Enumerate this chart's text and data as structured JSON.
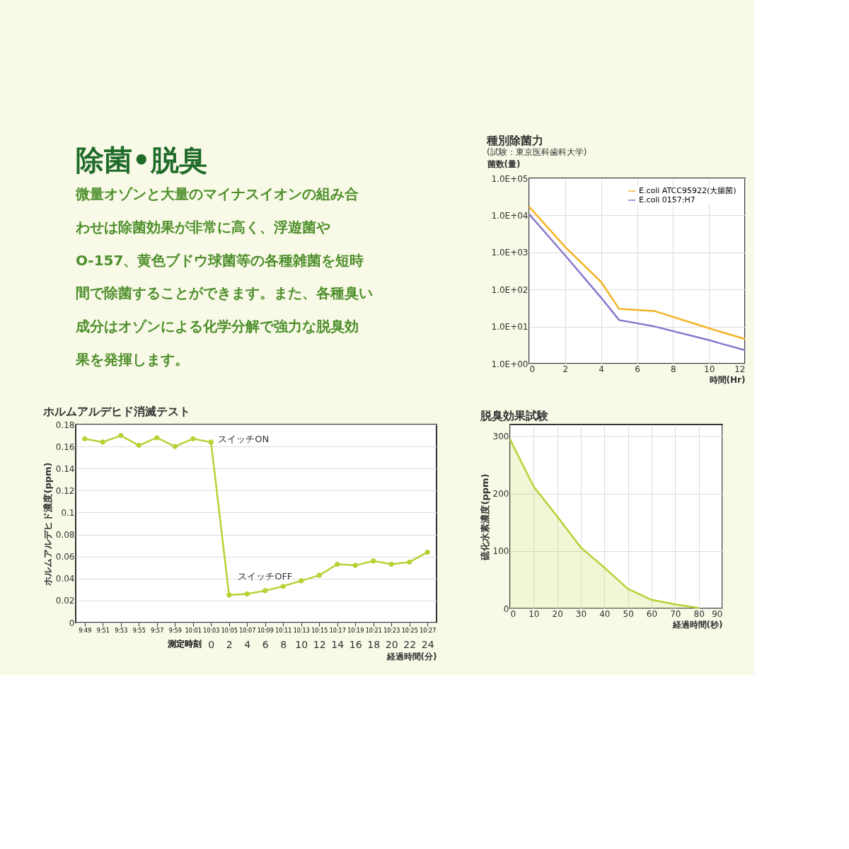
{
  "chart_data": [
    {
      "type": "other",
      "title": "除菌•脱臭",
      "annotations": [
        "微量オゾンと大量のマイナスイオンの組み合",
        "わせは除菌効果が非常に高く、浮遊菌や",
        "O-157、黄色ブドウ球菌等の各種雑菌を短時",
        "間で除菌することができます。また、各種臭い",
        "成分はオゾンによる化学分解で強力な脱臭効",
        "果を発揮します。"
      ]
    },
    {
      "type": "line",
      "title": "種別除菌力",
      "subtitle": "(試験：東京医科歯科大学)",
      "xlabel": "時間(Hr)",
      "ylabel": "菌数(量)",
      "x": [
        0,
        2,
        4,
        5,
        7,
        10,
        12
      ],
      "series": [
        {
          "name": "E.coli ATCC95922(大腸菌)",
          "color": "#f5b324",
          "values": [
            17000,
            1400,
            160,
            30,
            26,
            9,
            4.6
          ]
        },
        {
          "name": "E.coli 0157:H7",
          "color": "#8877cc",
          "values": [
            10700,
            830,
            60,
            15,
            10,
            4.3,
            2.3
          ]
        }
      ],
      "xlim": [
        0,
        12
      ],
      "xticks": [
        0,
        2,
        4,
        6,
        8,
        10,
        12
      ],
      "ylim": [
        1,
        100000
      ],
      "yticks": [
        {
          "value": 1,
          "label": "1.0E+00"
        },
        {
          "value": 10,
          "label": "1.0E+01"
        },
        {
          "value": 100,
          "label": "1.0E+02"
        },
        {
          "value": 1000,
          "label": "1.0E+03"
        },
        {
          "value": 10000,
          "label": "1.0E+04"
        },
        {
          "value": 100000,
          "label": "1.0E+05"
        }
      ],
      "log": "y",
      "grid": true,
      "legend": "top right",
      "marker": "none",
      "line_style": "solid"
    },
    {
      "type": "line",
      "title": "ホルムアルデヒド消滅テスト",
      "xlabel": "測定時刻",
      "x2label": "経過時間(分)",
      "ylabel": "ホルムアルデヒド濃度(ppm)",
      "categories": [
        "9:49",
        "9:51",
        "9:53",
        "9:55",
        "9:57",
        "9:59",
        "10:01",
        "10:03",
        "10:05",
        "10:07",
        "10:09",
        "10:11",
        "10:13",
        "10:15",
        "10:17",
        "10:19",
        "10:21",
        "10:23",
        "10:25",
        "10:27"
      ],
      "series": [
        {
          "color": "#b5d334",
          "values": [
            0.167,
            0.164,
            0.17,
            0.161,
            0.168,
            0.16,
            0.167,
            0.164,
            0.025,
            0.026,
            0.029,
            0.033,
            0.038,
            0.043,
            0.053,
            0.052,
            0.056,
            0.053,
            0.055,
            0.064
          ]
        }
      ],
      "ylim": [
        0,
        0.18
      ],
      "yticks": [
        0,
        0.02,
        0.04,
        0.06,
        0.08,
        0.1,
        0.12,
        0.14,
        0.16,
        0.18
      ],
      "x2lim": [
        -15,
        25
      ],
      "x2ticks": [
        0,
        2,
        4,
        6,
        8,
        10,
        12,
        14,
        16,
        18,
        20,
        22,
        24
      ],
      "annotations": [
        {
          "text": "スイッチON",
          "x": "10:03",
          "y": 0.164
        },
        {
          "text": "スイッチOFF",
          "x": "10:09",
          "y": 0.029
        }
      ],
      "grid": "y",
      "marker": "circle",
      "line_style": "solid"
    },
    {
      "type": "area",
      "title": "脱臭効果試験",
      "xlabel": "経過時間(秒)",
      "ylabel": "硫化水素濃度(ppm)",
      "x": [
        0,
        10,
        20,
        30,
        40,
        50,
        60,
        70,
        80
      ],
      "series": [
        {
          "color": "#b5d334",
          "values": [
            294,
            212,
            160,
            106,
            71,
            34,
            15,
            7,
            1
          ]
        }
      ],
      "xlim": [
        0,
        90
      ],
      "xticks": [
        0,
        10,
        20,
        30,
        40,
        50,
        60,
        70,
        80,
        90
      ],
      "ylim": [
        0,
        320
      ],
      "yticks": [
        0,
        100,
        200,
        300
      ],
      "grid": true,
      "marker": "none",
      "line_style": "solid"
    }
  ]
}
